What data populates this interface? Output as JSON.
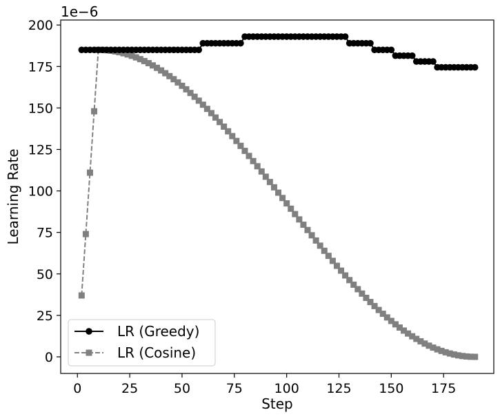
{
  "chart_data": {
    "type": "line",
    "xlabel": "Step",
    "ylabel": "Learning Rate",
    "scale_label": "1e−6",
    "xlim": [
      -8,
      199
    ],
    "ylim": [
      -10,
      203
    ],
    "xticks": [
      0,
      25,
      50,
      75,
      100,
      125,
      150,
      175
    ],
    "yticks": [
      0,
      25,
      50,
      75,
      100,
      125,
      150,
      175,
      200
    ],
    "legend_position": "lower-left",
    "series": [
      {
        "name": "LR (Greedy)",
        "color": "#000000",
        "line_style": "solid",
        "marker": "circle",
        "segments": [
          {
            "x_start": 2,
            "x_end": 58,
            "value": 185
          },
          {
            "x_start": 60,
            "x_end": 78,
            "value": 189
          },
          {
            "x_start": 80,
            "x_end": 128,
            "value": 193
          },
          {
            "x_start": 130,
            "x_end": 140,
            "value": 189
          },
          {
            "x_start": 142,
            "x_end": 150,
            "value": 185
          },
          {
            "x_start": 152,
            "x_end": 160,
            "value": 181.5
          },
          {
            "x_start": 162,
            "x_end": 170,
            "value": 178
          },
          {
            "x_start": 172,
            "x_end": 190,
            "value": 174.5
          }
        ]
      },
      {
        "name": "LR (Cosine)",
        "color": "#808080",
        "line_style": "dashed",
        "marker": "square",
        "warmup": {
          "x": [
            2,
            4,
            6,
            8
          ],
          "y": [
            37,
            74,
            111,
            148
          ]
        },
        "decay": {
          "x_start": 10,
          "x_end": 190,
          "step": 2,
          "peak": 185,
          "floor": 0,
          "shape": "cosine"
        }
      }
    ]
  }
}
